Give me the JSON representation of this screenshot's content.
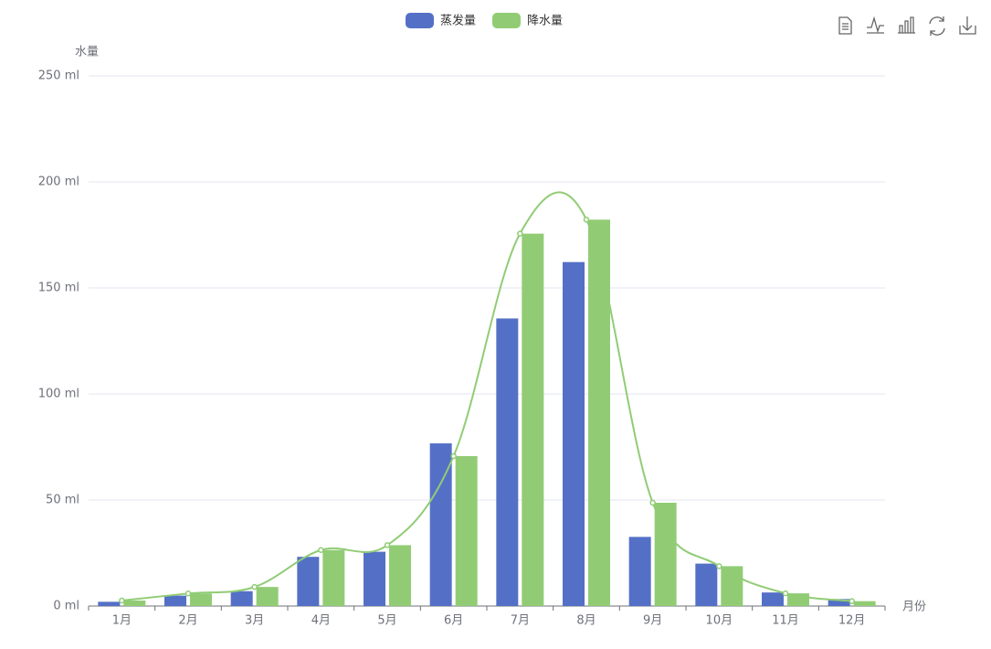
{
  "chart_data": {
    "type": "bar",
    "y_axis_name": "水量",
    "x_axis_name": "月份",
    "categories": [
      "1月",
      "2月",
      "3月",
      "4月",
      "5月",
      "6月",
      "7月",
      "8月",
      "9月",
      "10月",
      "11月",
      "12月"
    ],
    "series": [
      {
        "name": "蒸发量",
        "color": "#5470c6",
        "values": [
          2.0,
          4.9,
          7.0,
          23.2,
          25.6,
          76.7,
          135.6,
          162.2,
          32.6,
          20.0,
          6.4,
          3.3
        ]
      },
      {
        "name": "降水量",
        "color": "#91cc75",
        "values": [
          2.6,
          5.9,
          9.0,
          26.4,
          28.7,
          70.7,
          175.6,
          182.2,
          48.7,
          18.8,
          6.0,
          2.3
        ],
        "smooth_line": true
      }
    ],
    "ylim": [
      0,
      250
    ],
    "yticks": [
      {
        "value": 0,
        "label": "0 ml"
      },
      {
        "value": 50,
        "label": "50 ml"
      },
      {
        "value": 100,
        "label": "100 ml"
      },
      {
        "value": 150,
        "label": "150 ml"
      },
      {
        "value": 200,
        "label": "200 ml"
      },
      {
        "value": 250,
        "label": "250 ml"
      }
    ],
    "grid": true,
    "legend": "top"
  }
}
